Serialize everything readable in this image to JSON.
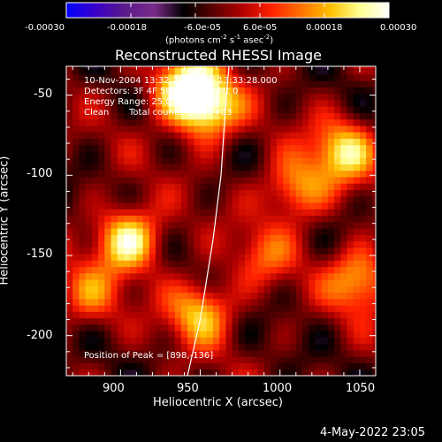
{
  "colorbar": {
    "ticks": [
      "-0.00030",
      "-0.00018",
      "-6.0e-05",
      "6.0e-05",
      "0.00018",
      "0.00030"
    ],
    "unit_prefix": "(photons cm",
    "unit_exp1": "-2",
    "unit_mid": " s",
    "unit_exp2": "-1",
    "unit_suffix": " asec",
    "unit_exp3": "-2",
    "unit_close": ")",
    "range": [
      -0.0003,
      0.0003
    ],
    "colors": [
      "#0000ff",
      "#3a00c8",
      "#5a1a8a",
      "#7a2a8a",
      "#000000",
      "#5a0000",
      "#b00000",
      "#ff2000",
      "#ff7000",
      "#ffc000",
      "#ffff90",
      "#ffffff"
    ]
  },
  "chart_data": {
    "type": "heatmap",
    "title": "Reconstructed RHESSI Image",
    "xlabel": "Heliocentric X (arcsec)",
    "ylabel": "Heliocentric Y (arcsec)",
    "xlim": [
      866,
      1060
    ],
    "ylim": [
      -225,
      -32
    ],
    "x_ticks": [
      900,
      950,
      1000,
      1050
    ],
    "y_ticks": [
      -50,
      -100,
      -150,
      -200
    ],
    "hotspots": [
      {
        "x": 940,
        "y": -45,
        "value": 0.0003
      },
      {
        "x": 955,
        "y": -58,
        "value": 0.00028
      },
      {
        "x": 905,
        "y": -140,
        "value": 0.00029
      },
      {
        "x": 1040,
        "y": -85,
        "value": 0.00024
      },
      {
        "x": 1010,
        "y": -108,
        "value": 0.0002
      },
      {
        "x": 950,
        "y": -185,
        "value": 0.00022
      },
      {
        "x": 1050,
        "y": -165,
        "value": 0.00021
      },
      {
        "x": 990,
        "y": -150,
        "value": 0.00012
      },
      {
        "x": 880,
        "y": -175,
        "value": 0.00014
      }
    ],
    "limb_line": [
      [
        942,
        -225
      ],
      [
        950,
        -190
      ],
      [
        958,
        -140
      ],
      [
        963,
        -100
      ],
      [
        966,
        -55
      ],
      [
        968,
        -32
      ]
    ],
    "peak": [
      898,
      -136
    ]
  },
  "annotations": {
    "time": "10-Nov-2004 13:32:28.000 to 13:33:28.000",
    "detectors": "Detectors: 3F 4F 5F 6F 7F 8F, Att 0",
    "energy": "Energy Range: 25.0 - 50.0 keV",
    "method": "Clean",
    "counts": "Total counts: 6.66E+03",
    "peak": "Position of Peak = [898,-136]"
  },
  "footer_date": "4-May-2022 23:05"
}
